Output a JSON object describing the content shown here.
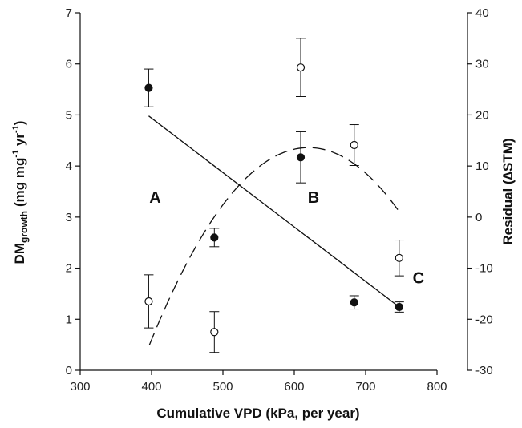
{
  "chart_data": {
    "type": "scatter",
    "x_axis": {
      "label": "Cumulative VPD (kPa, per year)",
      "range": [
        300,
        800
      ],
      "ticks": [
        300,
        400,
        500,
        600,
        700,
        800
      ]
    },
    "y_left": {
      "label_main": "DM",
      "label_sub": "growth",
      "label_units": "(mg mg",
      "label_sup1": "-1",
      "label_mid": " yr",
      "label_sup2": "-1",
      "label_end": ")",
      "range": [
        0,
        7
      ],
      "ticks": [
        0,
        1,
        2,
        3,
        4,
        5,
        6,
        7
      ]
    },
    "y_right": {
      "label": "Residual (∆STM)",
      "range": [
        -30,
        40
      ],
      "ticks": [
        -30,
        -20,
        -10,
        0,
        10,
        20,
        30,
        40
      ]
    },
    "series": [
      {
        "marker": "filled-circle",
        "axis": "left",
        "points": [
          {
            "x": 396,
            "y": 5.53,
            "err": 0.37
          },
          {
            "x": 488,
            "y": 2.6,
            "err": 0.18
          },
          {
            "x": 609,
            "y": 4.17,
            "err": 0.5
          },
          {
            "x": 684,
            "y": 1.33,
            "err": 0.13
          },
          {
            "x": 747,
            "y": 1.24,
            "err": 0.1
          }
        ],
        "fit": {
          "style": "solid",
          "kind": "linear",
          "x": [
            396,
            747
          ],
          "y": [
            4.98,
            1.24
          ]
        }
      },
      {
        "marker": "open-circle",
        "axis": "right",
        "points": [
          {
            "x": 396,
            "y": -16.5,
            "err": 5.2
          },
          {
            "x": 488,
            "y": -22.5,
            "err": 4.0
          },
          {
            "x": 609,
            "y": 29.3,
            "err": 5.7
          },
          {
            "x": 684,
            "y": 14.1,
            "err": 4.0
          },
          {
            "x": 747,
            "y": -8.0,
            "err": 3.5
          }
        ],
        "fit": {
          "style": "dashed",
          "kind": "quadratic",
          "x_range": [
            397,
            745
          ],
          "vertex_x": 620,
          "vertex_y": 13.6,
          "coef_a": -0.000777
        }
      }
    ],
    "annotations": [
      {
        "text": "A",
        "x": 405,
        "y_left": 3.28
      },
      {
        "text": "B",
        "x": 627,
        "y_left": 3.28
      },
      {
        "text": "C",
        "x": 774,
        "y_left": 1.7
      }
    ],
    "grid": false,
    "legend": "none"
  },
  "colors": {
    "ink": "#111111",
    "marker_open_fill": "#ffffff"
  }
}
